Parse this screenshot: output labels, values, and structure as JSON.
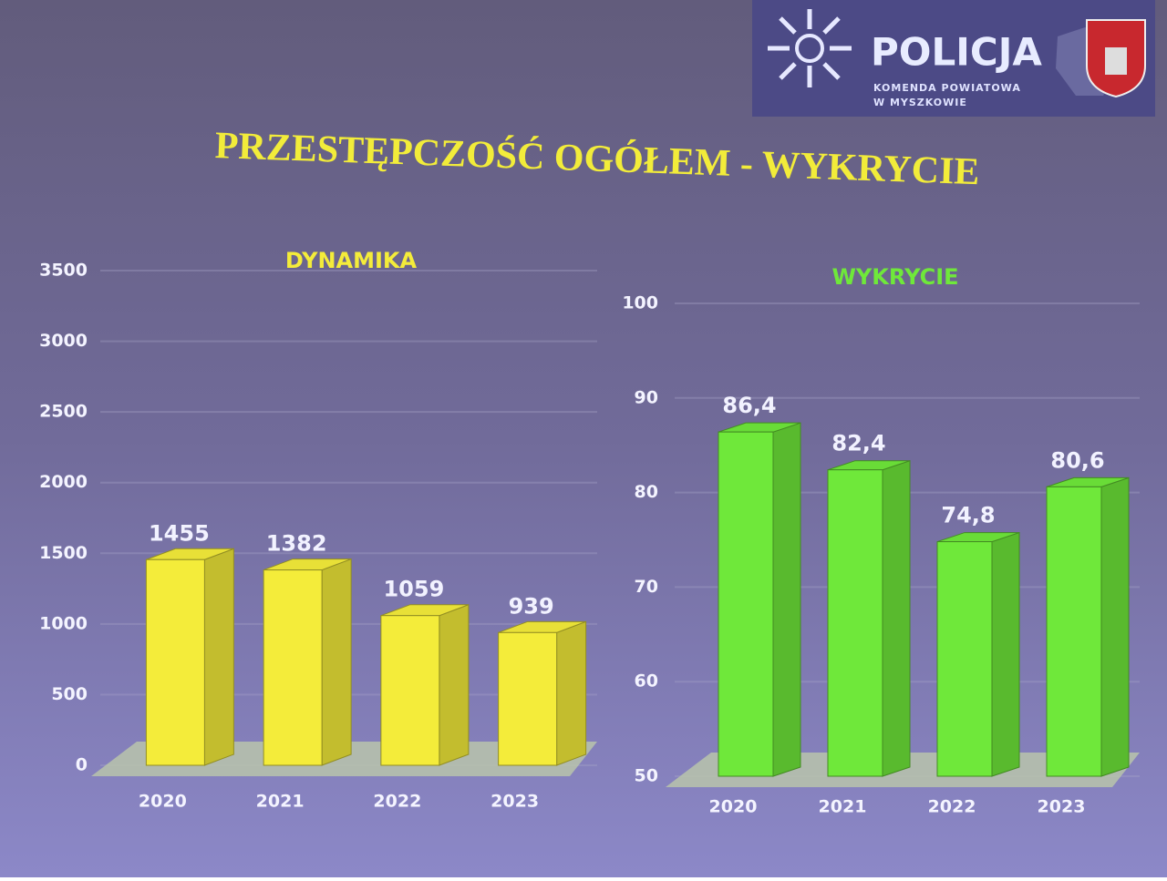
{
  "logo": {
    "name": "POLICJA",
    "line1": "KOMENDA POWIATOWA",
    "line2": "W MYSZKOWIE"
  },
  "title": "PRZESTĘPCZOŚĆ OGÓŁEM - WYKRYCIE",
  "chart_data": [
    {
      "type": "bar",
      "title": "DYNAMIKA",
      "categories": [
        "2020",
        "2021",
        "2022",
        "2023"
      ],
      "values": [
        1455,
        1382,
        1059,
        939
      ],
      "color": "#f4ec3a",
      "ylim": [
        0,
        3500
      ],
      "yticks": [
        0,
        500,
        1000,
        1500,
        2000,
        2500,
        3000,
        3500
      ],
      "grid": true
    },
    {
      "type": "bar",
      "title": "WYKRYCIE",
      "categories": [
        "2020",
        "2021",
        "2022",
        "2023"
      ],
      "values": [
        86.4,
        82.4,
        74.8,
        80.6
      ],
      "value_labels": [
        "86,4",
        "82,4",
        "74,8",
        "80,6"
      ],
      "color": "#6fe83a",
      "ylim": [
        50,
        100
      ],
      "yticks": [
        50,
        60,
        70,
        80,
        90,
        100
      ],
      "grid": true
    }
  ]
}
